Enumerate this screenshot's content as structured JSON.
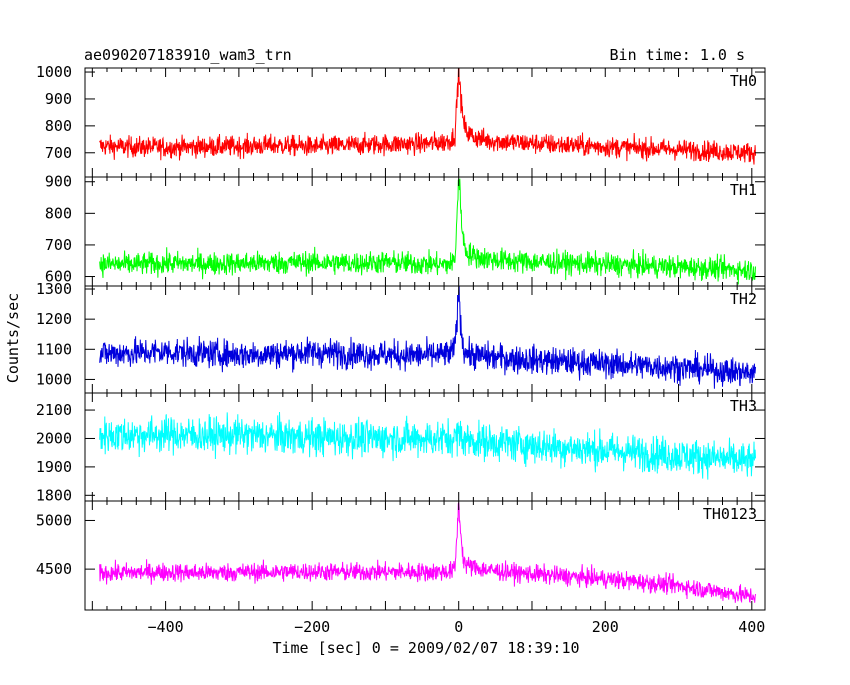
{
  "chart_data": {
    "type": "line",
    "title": "ae090207183910_wam3_trn",
    "subtitle": "Bin time: 1.0 s",
    "xlabel": "Time [sec] 0 = 2009/02/07 18:39:10",
    "ylabel": "Counts/sec",
    "xlim": [
      -510,
      418
    ],
    "x_ticks": [
      -400,
      -200,
      0,
      200,
      400
    ],
    "grid": false,
    "panels": [
      {
        "name": "TH0",
        "color": "#ff0000",
        "ylim": [
          610,
          1015
        ],
        "y_ticks": [
          700,
          800,
          900,
          1000
        ],
        "x": [
          -490,
          -450,
          -400,
          -350,
          -300,
          -250,
          -200,
          -150,
          -100,
          -50,
          -20,
          -10,
          -5,
          0,
          3,
          6,
          10,
          20,
          40,
          80,
          120,
          200,
          300,
          400,
          405
        ],
        "values": [
          725,
          722,
          720,
          722,
          724,
          728,
          723,
          728,
          732,
          733,
          740,
          748,
          770,
          1010,
          900,
          820,
          780,
          760,
          745,
          738,
          732,
          722,
          712,
          700,
          702
        ]
      },
      {
        "name": "TH1",
        "color": "#00ff00",
        "ylim": [
          570,
          915
        ],
        "y_ticks": [
          600,
          700,
          800,
          900
        ],
        "x": [
          -490,
          -450,
          -400,
          -350,
          -300,
          -250,
          -200,
          -150,
          -100,
          -50,
          -20,
          -10,
          -5,
          0,
          3,
          6,
          10,
          20,
          40,
          80,
          120,
          200,
          300,
          400,
          405
        ],
        "values": [
          640,
          638,
          642,
          640,
          642,
          643,
          645,
          642,
          645,
          640,
          638,
          640,
          655,
          915,
          820,
          720,
          680,
          665,
          655,
          648,
          645,
          638,
          630,
          620,
          622
        ]
      },
      {
        "name": "TH2",
        "color": "#0000dd",
        "ylim": [
          955,
          1310
        ],
        "y_ticks": [
          1000,
          1100,
          1200,
          1300
        ],
        "x": [
          -490,
          -450,
          -400,
          -350,
          -300,
          -250,
          -200,
          -150,
          -100,
          -50,
          -20,
          -10,
          -5,
          0,
          3,
          6,
          10,
          20,
          40,
          80,
          120,
          200,
          300,
          400,
          405
        ],
        "values": [
          1085,
          1088,
          1092,
          1086,
          1082,
          1085,
          1090,
          1085,
          1082,
          1080,
          1082,
          1085,
          1110,
          1295,
          1180,
          1110,
          1090,
          1080,
          1075,
          1068,
          1062,
          1052,
          1040,
          1020,
          1022
        ]
      },
      {
        "name": "TH3",
        "color": "#00ffff",
        "ylim": [
          1780,
          2160
        ],
        "y_ticks": [
          1800,
          1900,
          2000,
          2100
        ],
        "x": [
          -490,
          -450,
          -400,
          -350,
          -300,
          -250,
          -200,
          -150,
          -100,
          -50,
          -20,
          -10,
          -5,
          0,
          3,
          6,
          10,
          20,
          40,
          80,
          120,
          200,
          300,
          400,
          405
        ],
        "values": [
          2010,
          2012,
          2015,
          2010,
          2012,
          2008,
          2005,
          2002,
          2000,
          2000,
          2000,
          2000,
          2003,
          2015,
          2008,
          2000,
          1995,
          1992,
          1988,
          1980,
          1972,
          1958,
          1940,
          1920,
          1922
        ]
      },
      {
        "name": "TH0123",
        "color": "#ff00ff",
        "ylim": [
          4080,
          5200
        ],
        "y_ticks": [
          4500,
          5000
        ],
        "x": [
          -490,
          -450,
          -400,
          -350,
          -300,
          -250,
          -200,
          -150,
          -100,
          -50,
          -20,
          -10,
          -5,
          0,
          3,
          6,
          10,
          20,
          40,
          80,
          120,
          200,
          300,
          400,
          405
        ],
        "values": [
          4460,
          4465,
          4470,
          4462,
          4468,
          4470,
          4475,
          4470,
          4472,
          4470,
          4472,
          4478,
          4510,
          5170,
          4850,
          4620,
          4540,
          4520,
          4490,
          4460,
          4440,
          4400,
          4330,
          4220,
          4230
        ]
      }
    ]
  }
}
